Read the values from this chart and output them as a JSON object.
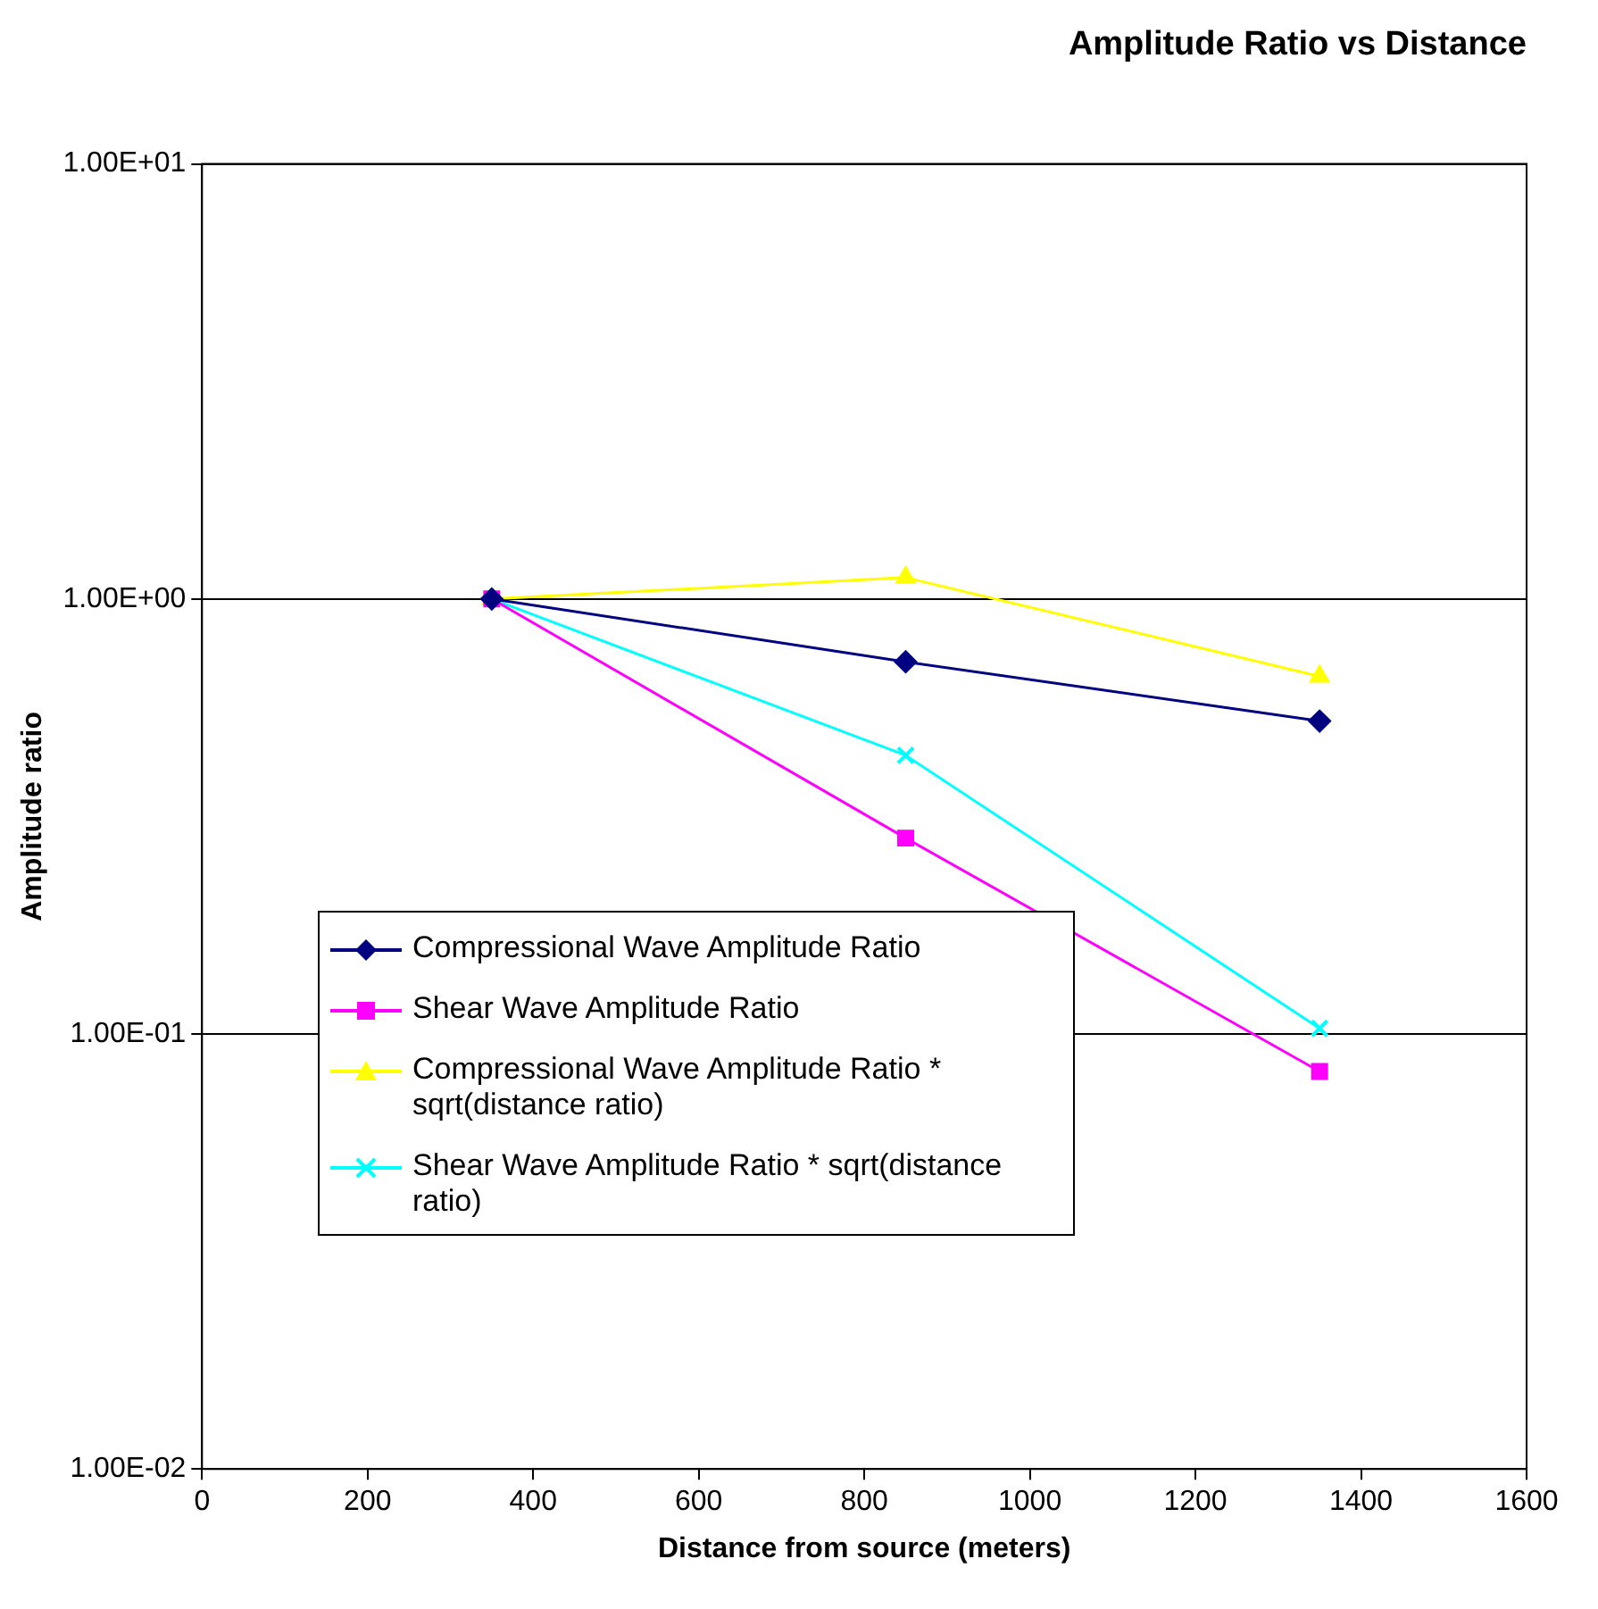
{
  "chart_data": {
    "type": "line",
    "title": "Amplitude Ratio vs Distance",
    "xlabel": "Distance from source (meters)",
    "ylabel": "Amplitude ratio",
    "x": [
      350,
      850,
      1350
    ],
    "series": [
      {
        "name": "Compressional Wave Amplitude Ratio",
        "color": "#000080",
        "marker": "diamond",
        "values": [
          1,
          0.717,
          0.524
        ]
      },
      {
        "name": "Shear Wave Amplitude Ratio",
        "color": "#ff00ff",
        "marker": "square",
        "values": [
          1,
          0.282,
          0.082
        ]
      },
      {
        "name": "Compressional Wave Amplitude Ratio * sqrt(distance ratio)",
        "color": "#ffff00",
        "marker": "triangle",
        "values": [
          1,
          1.12,
          0.664
        ]
      },
      {
        "name": "Shear Wave Amplitude Ratio * sqrt(distance ratio)",
        "color": "#00ffff",
        "marker": "cross",
        "values": [
          1,
          0.437,
          0.103
        ]
      }
    ],
    "xlim": [
      0,
      1600
    ],
    "xticks": [
      0,
      200,
      400,
      600,
      800,
      1000,
      1200,
      1400,
      1600
    ],
    "ylim": [
      0.01,
      10
    ],
    "yticks": [
      {
        "value": 0.01,
        "label": "1.00E-02"
      },
      {
        "value": 0.1,
        "label": "1.00E-01"
      },
      {
        "value": 1,
        "label": "1.00E+00"
      },
      {
        "value": 10,
        "label": "1.00E+01"
      }
    ],
    "log": "y",
    "grid": "y",
    "legend": "left",
    "line_style": "solid"
  }
}
